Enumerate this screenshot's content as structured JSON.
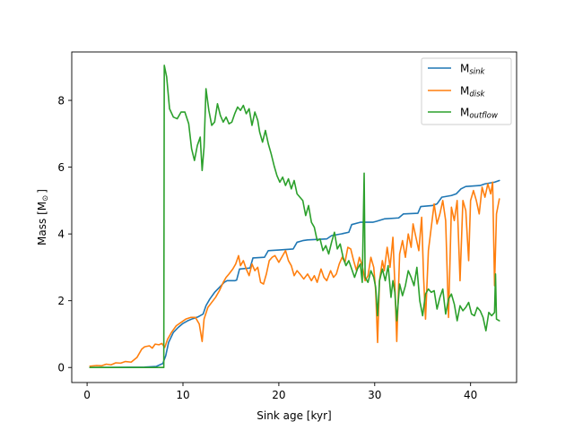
{
  "chart_data": {
    "type": "line",
    "xlabel": "Sink age [kyr]",
    "ylabel_main": "Mass [M",
    "ylabel_sub": "⊙",
    "ylabel_close": "]",
    "xlim": [
      -1.6,
      44.8
    ],
    "ylim": [
      -0.45,
      9.45
    ],
    "xticks": [
      0,
      10,
      20,
      30,
      40
    ],
    "yticks": [
      0,
      2,
      4,
      6,
      8
    ],
    "grid": false,
    "legend_position": "top-right",
    "series": [
      {
        "name_main": "M",
        "name_sub": "sink",
        "color": "#1f77b4",
        "points": [
          [
            0.3,
            0.0
          ],
          [
            6.0,
            0.01
          ],
          [
            7.2,
            0.03
          ],
          [
            7.9,
            0.12
          ],
          [
            8.2,
            0.35
          ],
          [
            8.5,
            0.75
          ],
          [
            9.0,
            1.05
          ],
          [
            9.5,
            1.2
          ],
          [
            10.0,
            1.32
          ],
          [
            10.5,
            1.4
          ],
          [
            11.0,
            1.46
          ],
          [
            11.6,
            1.52
          ],
          [
            12.1,
            1.6
          ],
          [
            12.4,
            1.85
          ],
          [
            12.8,
            2.05
          ],
          [
            13.3,
            2.25
          ],
          [
            13.8,
            2.4
          ],
          [
            14.3,
            2.55
          ],
          [
            14.6,
            2.6
          ],
          [
            15.4,
            2.6
          ],
          [
            15.6,
            2.62
          ],
          [
            15.9,
            2.95
          ],
          [
            17.0,
            2.98
          ],
          [
            17.3,
            3.28
          ],
          [
            18.5,
            3.3
          ],
          [
            18.9,
            3.5
          ],
          [
            20.0,
            3.52
          ],
          [
            21.5,
            3.55
          ],
          [
            21.9,
            3.75
          ],
          [
            22.5,
            3.8
          ],
          [
            23.0,
            3.82
          ],
          [
            25.0,
            3.85
          ],
          [
            25.5,
            3.95
          ],
          [
            26.5,
            4.0
          ],
          [
            27.3,
            4.05
          ],
          [
            27.6,
            4.28
          ],
          [
            28.5,
            4.35
          ],
          [
            29.8,
            4.35
          ],
          [
            30.2,
            4.38
          ],
          [
            31.0,
            4.45
          ],
          [
            32.5,
            4.48
          ],
          [
            33.0,
            4.6
          ],
          [
            34.5,
            4.62
          ],
          [
            34.8,
            4.82
          ],
          [
            36.0,
            4.85
          ],
          [
            36.5,
            4.9
          ],
          [
            37.0,
            5.1
          ],
          [
            38.0,
            5.15
          ],
          [
            38.5,
            5.2
          ],
          [
            39.0,
            5.35
          ],
          [
            39.5,
            5.42
          ],
          [
            41.0,
            5.45
          ],
          [
            41.5,
            5.5
          ],
          [
            42.5,
            5.55
          ],
          [
            43.0,
            5.6
          ]
        ]
      },
      {
        "name_main": "M",
        "name_sub": "disk",
        "color": "#ff7f0e",
        "points": [
          [
            0.3,
            0.04
          ],
          [
            1.0,
            0.06
          ],
          [
            1.5,
            0.05
          ],
          [
            2.0,
            0.1
          ],
          [
            2.5,
            0.08
          ],
          [
            3.0,
            0.14
          ],
          [
            3.5,
            0.13
          ],
          [
            4.0,
            0.18
          ],
          [
            4.6,
            0.16
          ],
          [
            5.2,
            0.3
          ],
          [
            5.7,
            0.55
          ],
          [
            6.0,
            0.62
          ],
          [
            6.5,
            0.65
          ],
          [
            6.8,
            0.58
          ],
          [
            7.1,
            0.7
          ],
          [
            7.5,
            0.68
          ],
          [
            7.8,
            0.72
          ],
          [
            8.1,
            0.6
          ],
          [
            8.4,
            0.85
          ],
          [
            8.8,
            1.05
          ],
          [
            9.3,
            1.25
          ],
          [
            9.8,
            1.35
          ],
          [
            10.3,
            1.45
          ],
          [
            10.8,
            1.5
          ],
          [
            11.3,
            1.5
          ],
          [
            11.7,
            1.3
          ],
          [
            12.0,
            0.78
          ],
          [
            12.2,
            1.45
          ],
          [
            12.6,
            1.8
          ],
          [
            13.0,
            1.95
          ],
          [
            13.4,
            2.1
          ],
          [
            13.8,
            2.3
          ],
          [
            14.2,
            2.55
          ],
          [
            14.5,
            2.7
          ],
          [
            14.8,
            2.8
          ],
          [
            15.2,
            2.95
          ],
          [
            15.5,
            3.1
          ],
          [
            15.8,
            3.35
          ],
          [
            16.0,
            3.05
          ],
          [
            16.3,
            3.2
          ],
          [
            16.6,
            2.95
          ],
          [
            16.9,
            2.75
          ],
          [
            17.2,
            3.1
          ],
          [
            17.5,
            2.9
          ],
          [
            17.8,
            3.0
          ],
          [
            18.1,
            2.55
          ],
          [
            18.4,
            2.5
          ],
          [
            18.7,
            2.8
          ],
          [
            19.0,
            3.2
          ],
          [
            19.3,
            3.3
          ],
          [
            19.6,
            3.35
          ],
          [
            20.0,
            3.15
          ],
          [
            20.3,
            3.3
          ],
          [
            20.7,
            3.5
          ],
          [
            21.0,
            3.2
          ],
          [
            21.3,
            3.05
          ],
          [
            21.6,
            2.75
          ],
          [
            21.9,
            2.9
          ],
          [
            22.2,
            2.8
          ],
          [
            22.6,
            2.65
          ],
          [
            23.0,
            2.8
          ],
          [
            23.4,
            2.6
          ],
          [
            23.7,
            2.75
          ],
          [
            24.0,
            2.55
          ],
          [
            24.4,
            2.95
          ],
          [
            24.7,
            2.7
          ],
          [
            25.0,
            2.6
          ],
          [
            25.4,
            2.9
          ],
          [
            25.7,
            2.7
          ],
          [
            26.0,
            2.8
          ],
          [
            26.3,
            3.1
          ],
          [
            26.6,
            3.3
          ],
          [
            26.9,
            3.15
          ],
          [
            27.2,
            3.6
          ],
          [
            27.5,
            3.55
          ],
          [
            27.8,
            3.2
          ],
          [
            28.1,
            2.9
          ],
          [
            28.4,
            3.3
          ],
          [
            28.7,
            3.05
          ],
          [
            29.0,
            2.6
          ],
          [
            29.3,
            2.75
          ],
          [
            29.6,
            3.3
          ],
          [
            29.9,
            3.0
          ],
          [
            30.1,
            2.3
          ],
          [
            30.3,
            0.75
          ],
          [
            30.5,
            2.6
          ],
          [
            30.8,
            3.2
          ],
          [
            31.0,
            2.9
          ],
          [
            31.3,
            3.6
          ],
          [
            31.6,
            3.0
          ],
          [
            31.9,
            3.9
          ],
          [
            32.1,
            2.5
          ],
          [
            32.3,
            0.78
          ],
          [
            32.6,
            3.4
          ],
          [
            32.9,
            3.8
          ],
          [
            33.2,
            3.3
          ],
          [
            33.5,
            4.0
          ],
          [
            33.8,
            3.6
          ],
          [
            34.0,
            4.3
          ],
          [
            34.3,
            3.9
          ],
          [
            34.6,
            3.5
          ],
          [
            34.9,
            4.5
          ],
          [
            35.1,
            2.7
          ],
          [
            35.3,
            1.45
          ],
          [
            35.6,
            3.5
          ],
          [
            35.9,
            4.2
          ],
          [
            36.2,
            4.9
          ],
          [
            36.5,
            4.3
          ],
          [
            36.8,
            4.6
          ],
          [
            37.1,
            5.0
          ],
          [
            37.4,
            4.4
          ],
          [
            37.7,
            1.5
          ],
          [
            38.0,
            4.8
          ],
          [
            38.3,
            4.4
          ],
          [
            38.6,
            5.0
          ],
          [
            38.9,
            2.6
          ],
          [
            39.2,
            5.0
          ],
          [
            39.5,
            4.7
          ],
          [
            39.8,
            3.2
          ],
          [
            40.0,
            5.0
          ],
          [
            40.3,
            5.3
          ],
          [
            40.6,
            5.0
          ],
          [
            40.9,
            4.6
          ],
          [
            41.2,
            5.4
          ],
          [
            41.5,
            5.1
          ],
          [
            41.8,
            5.5
          ],
          [
            42.1,
            5.2
          ],
          [
            42.3,
            5.55
          ],
          [
            42.5,
            2.45
          ],
          [
            42.7,
            4.6
          ],
          [
            43.0,
            5.05
          ]
        ]
      },
      {
        "name_main": "M",
        "name_sub": "outflow",
        "color": "#2ca02c",
        "points": [
          [
            0.3,
            0.0
          ],
          [
            8.0,
            0.0
          ],
          [
            8.05,
            9.05
          ],
          [
            8.3,
            8.7
          ],
          [
            8.6,
            7.75
          ],
          [
            9.0,
            7.5
          ],
          [
            9.4,
            7.45
          ],
          [
            9.8,
            7.65
          ],
          [
            10.2,
            7.65
          ],
          [
            10.6,
            7.3
          ],
          [
            10.9,
            6.55
          ],
          [
            11.2,
            6.2
          ],
          [
            11.5,
            6.65
          ],
          [
            11.8,
            6.9
          ],
          [
            12.0,
            5.9
          ],
          [
            12.2,
            6.6
          ],
          [
            12.4,
            8.35
          ],
          [
            12.7,
            7.7
          ],
          [
            13.0,
            7.25
          ],
          [
            13.3,
            7.35
          ],
          [
            13.6,
            7.9
          ],
          [
            13.9,
            7.55
          ],
          [
            14.2,
            7.35
          ],
          [
            14.5,
            7.5
          ],
          [
            14.8,
            7.3
          ],
          [
            15.1,
            7.35
          ],
          [
            15.4,
            7.6
          ],
          [
            15.7,
            7.8
          ],
          [
            16.0,
            7.7
          ],
          [
            16.3,
            7.85
          ],
          [
            16.6,
            7.6
          ],
          [
            16.9,
            7.75
          ],
          [
            17.2,
            7.25
          ],
          [
            17.5,
            7.65
          ],
          [
            17.8,
            7.4
          ],
          [
            18.0,
            7.05
          ],
          [
            18.3,
            6.75
          ],
          [
            18.6,
            7.1
          ],
          [
            18.9,
            6.7
          ],
          [
            19.2,
            6.4
          ],
          [
            19.5,
            6.05
          ],
          [
            19.8,
            5.75
          ],
          [
            20.1,
            5.55
          ],
          [
            20.4,
            5.7
          ],
          [
            20.7,
            5.45
          ],
          [
            21.0,
            5.65
          ],
          [
            21.3,
            5.35
          ],
          [
            21.6,
            5.6
          ],
          [
            21.9,
            5.2
          ],
          [
            22.2,
            5.1
          ],
          [
            22.5,
            5.0
          ],
          [
            22.8,
            4.55
          ],
          [
            23.1,
            4.85
          ],
          [
            23.4,
            4.35
          ],
          [
            23.7,
            4.2
          ],
          [
            24.0,
            3.8
          ],
          [
            24.3,
            3.85
          ],
          [
            24.6,
            3.5
          ],
          [
            24.9,
            3.65
          ],
          [
            25.2,
            3.4
          ],
          [
            25.5,
            3.75
          ],
          [
            25.8,
            4.05
          ],
          [
            26.1,
            3.55
          ],
          [
            26.4,
            3.7
          ],
          [
            26.7,
            3.3
          ],
          [
            27.0,
            3.05
          ],
          [
            27.3,
            3.2
          ],
          [
            27.6,
            2.95
          ],
          [
            27.9,
            2.7
          ],
          [
            28.2,
            2.95
          ],
          [
            28.5,
            3.1
          ],
          [
            28.7,
            2.55
          ],
          [
            28.9,
            5.82
          ],
          [
            29.0,
            2.7
          ],
          [
            29.3,
            2.55
          ],
          [
            29.6,
            2.9
          ],
          [
            29.9,
            2.7
          ],
          [
            30.1,
            2.4
          ],
          [
            30.3,
            1.55
          ],
          [
            30.5,
            2.6
          ],
          [
            30.8,
            2.95
          ],
          [
            31.1,
            2.6
          ],
          [
            31.4,
            3.05
          ],
          [
            31.7,
            2.1
          ],
          [
            31.9,
            2.6
          ],
          [
            32.1,
            2.25
          ],
          [
            32.3,
            1.4
          ],
          [
            32.6,
            2.5
          ],
          [
            32.9,
            2.15
          ],
          [
            33.2,
            2.45
          ],
          [
            33.5,
            2.9
          ],
          [
            33.8,
            2.7
          ],
          [
            34.1,
            2.45
          ],
          [
            34.4,
            3.0
          ],
          [
            34.7,
            2.0
          ],
          [
            35.0,
            1.55
          ],
          [
            35.3,
            2.2
          ],
          [
            35.6,
            2.35
          ],
          [
            35.9,
            2.25
          ],
          [
            36.2,
            2.3
          ],
          [
            36.5,
            1.75
          ],
          [
            36.8,
            2.1
          ],
          [
            37.1,
            2.35
          ],
          [
            37.4,
            1.6
          ],
          [
            37.7,
            2.05
          ],
          [
            38.0,
            2.2
          ],
          [
            38.3,
            1.9
          ],
          [
            38.6,
            1.4
          ],
          [
            38.9,
            1.85
          ],
          [
            39.2,
            1.7
          ],
          [
            39.5,
            1.8
          ],
          [
            39.8,
            1.95
          ],
          [
            40.1,
            1.6
          ],
          [
            40.4,
            1.55
          ],
          [
            40.7,
            1.8
          ],
          [
            41.0,
            1.7
          ],
          [
            41.3,
            1.5
          ],
          [
            41.6,
            1.1
          ],
          [
            41.9,
            1.65
          ],
          [
            42.2,
            1.55
          ],
          [
            42.5,
            1.65
          ],
          [
            42.6,
            2.8
          ],
          [
            42.7,
            1.45
          ],
          [
            43.0,
            1.4
          ]
        ]
      }
    ]
  }
}
